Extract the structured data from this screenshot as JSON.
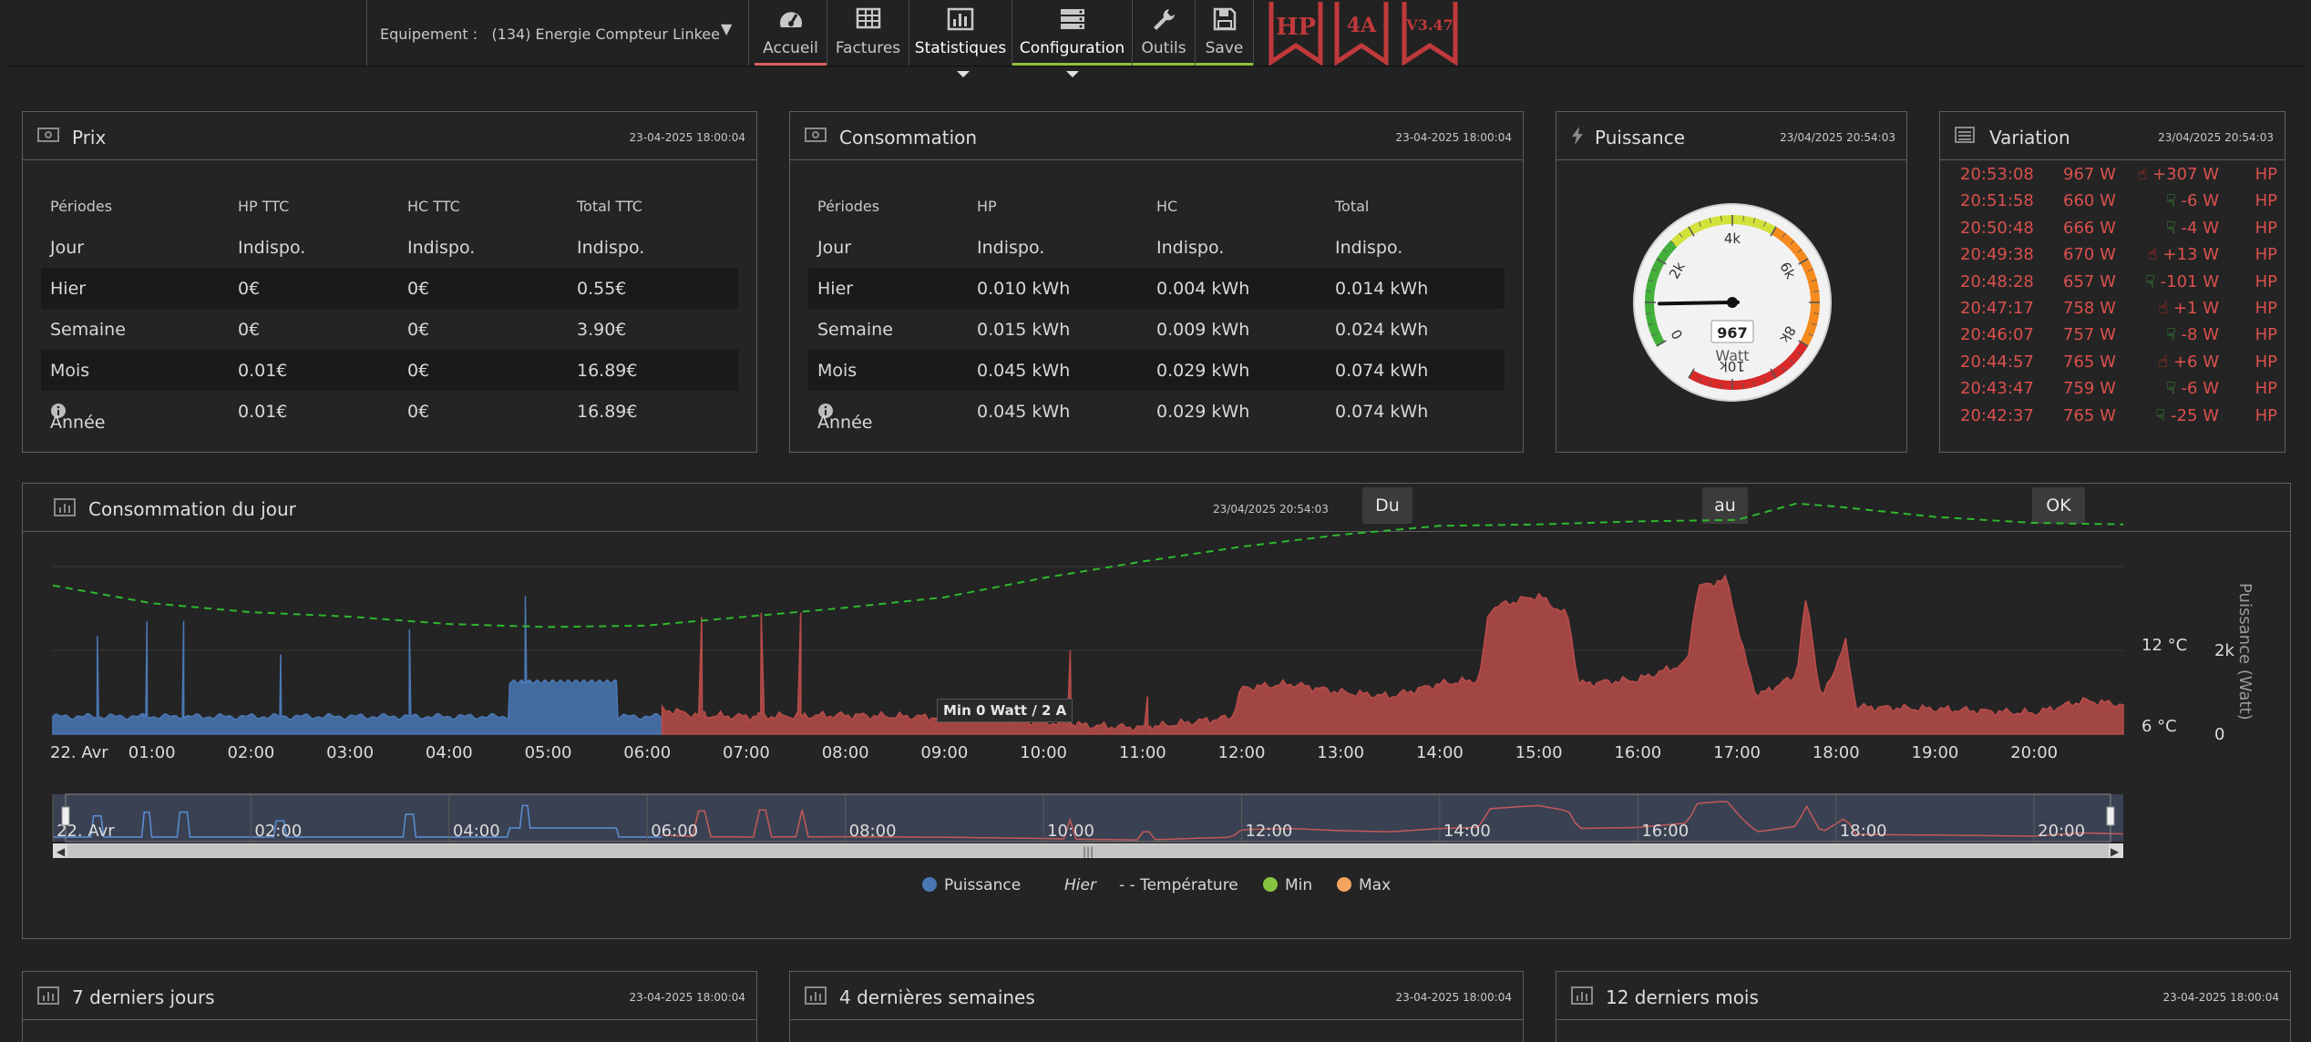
{
  "nav": {
    "equipment_label": "Equipement :",
    "equipment_value": "(134) Energie Compteur Linkee",
    "buttons": [
      {
        "label": "Accueil",
        "icon": "dashboard-icon",
        "underline": "#e06060"
      },
      {
        "label": "Factures",
        "icon": "table-icon",
        "underline": ""
      },
      {
        "label": "Statistiques",
        "icon": "bar-chart-icon",
        "underline": ""
      },
      {
        "label": "Configuration",
        "icon": "server-icon",
        "underline": "#8fc13e"
      },
      {
        "label": "Outils",
        "icon": "wrench-icon",
        "underline": "#8fc13e"
      },
      {
        "label": "Save",
        "icon": "save-icon",
        "underline": "#8fc13e"
      }
    ],
    "badges": [
      "HP",
      "4A",
      "V3.47"
    ],
    "badge_color": "#c0393b"
  },
  "prix": {
    "title": "Prix",
    "date": "23-04-2025 18:00:04",
    "headers": [
      "Périodes",
      "HP TTC",
      "HC TTC",
      "Total TTC"
    ],
    "rows": [
      [
        "Jour",
        "Indispo.",
        "Indispo.",
        "Indispo."
      ],
      [
        "Hier",
        "0€",
        "0€",
        "0.55€"
      ],
      [
        "Semaine",
        "0€",
        "0€",
        "3.90€"
      ],
      [
        "Mois",
        "0.01€",
        "0€",
        "16.89€"
      ],
      [
        "Année",
        "0.01€",
        "0€",
        "16.89€"
      ]
    ]
  },
  "consommation": {
    "title": "Consommation",
    "date": "23-04-2025 18:00:04",
    "headers": [
      "Périodes",
      "HP",
      "HC",
      "Total"
    ],
    "rows": [
      [
        "Jour",
        "Indispo.",
        "Indispo.",
        "Indispo."
      ],
      [
        "Hier",
        "0.010 kWh",
        "0.004 kWh",
        "0.014 kWh"
      ],
      [
        "Semaine",
        "0.015 kWh",
        "0.009 kWh",
        "0.024 kWh"
      ],
      [
        "Mois",
        "0.045 kWh",
        "0.029 kWh",
        "0.074 kWh"
      ],
      [
        "Année",
        "0.045 kWh",
        "0.029 kWh",
        "0.074 kWh"
      ]
    ]
  },
  "puissance": {
    "title": "Puissance",
    "date": "23/04/2025 20:54:03",
    "value": "967",
    "unit": "Watt",
    "gauge_value": 967,
    "gauge_max": 11000,
    "ticks": [
      "0",
      "2k",
      "4k",
      "6k",
      "8k",
      "10k"
    ]
  },
  "variation": {
    "title": "Variation",
    "date": "23/04/2025 20:54:03",
    "rows": [
      {
        "time": "20:53:08",
        "watt": "967 W",
        "delta": "+307 W",
        "tarif": "HP",
        "up": true
      },
      {
        "time": "20:51:58",
        "watt": "660 W",
        "delta": "-6 W",
        "tarif": "HP",
        "up": false
      },
      {
        "time": "20:50:48",
        "watt": "666 W",
        "delta": "-4 W",
        "tarif": "HP",
        "up": false
      },
      {
        "time": "20:49:38",
        "watt": "670 W",
        "delta": "+13 W",
        "tarif": "HP",
        "up": true
      },
      {
        "time": "20:48:28",
        "watt": "657 W",
        "delta": "-101 W",
        "tarif": "HP",
        "up": false
      },
      {
        "time": "20:47:17",
        "watt": "758 W",
        "delta": "+1 W",
        "tarif": "HP",
        "up": true
      },
      {
        "time": "20:46:07",
        "watt": "757 W",
        "delta": "-8 W",
        "tarif": "HP",
        "up": false
      },
      {
        "time": "20:44:57",
        "watt": "765 W",
        "delta": "+6 W",
        "tarif": "HP",
        "up": true
      },
      {
        "time": "20:43:47",
        "watt": "759 W",
        "delta": "-6 W",
        "tarif": "HP",
        "up": false
      },
      {
        "time": "20:42:37",
        "watt": "765 W",
        "delta": "-25 W",
        "tarif": "HP",
        "up": false
      }
    ]
  },
  "daily": {
    "title": "Consommation du jour",
    "date": "23/04/2025 20:54:03",
    "du_label": "Du",
    "au_label": "au",
    "ok_label": "OK",
    "tooltip": "Min 0 Watt / 2 A",
    "legend": {
      "puissance": "Puissance",
      "hier": "Hier",
      "temperature": "- - Température",
      "min": "Min",
      "max": "Max"
    },
    "colors": {
      "hc": "#4a78b5",
      "hp": "#b84c4a",
      "temp": "#2eb82e",
      "min": "#86c440",
      "max": "#f4a460"
    }
  },
  "bottom_panels": [
    {
      "title": "7 derniers jours",
      "date": "23-04-2025 18:00:04"
    },
    {
      "title": "4 dernières semaines",
      "date": "23-04-2025 18:00:04"
    },
    {
      "title": "12 derniers mois",
      "date": "23-04-2025 18:00:04"
    }
  ],
  "chart_data": {
    "type": "area",
    "title": "Consommation du jour",
    "x_ticks": [
      "22. Avr",
      "01:00",
      "02:00",
      "03:00",
      "04:00",
      "05:00",
      "06:00",
      "07:00",
      "08:00",
      "09:00",
      "10:00",
      "11:00",
      "12:00",
      "13:00",
      "14:00",
      "15:00",
      "16:00",
      "17:00",
      "18:00",
      "19:00",
      "20:00"
    ],
    "navigator_ticks": [
      "22. Avr",
      "02:00",
      "04:00",
      "06:00",
      "08:00",
      "10:00",
      "12:00",
      "14:00",
      "16:00",
      "18:00",
      "20:00"
    ],
    "ylabel": "Puissance (Watt)",
    "y_ticks": [
      "0",
      "2k"
    ],
    "y_temp_ticks": [
      "6 °C",
      "12 °C"
    ],
    "ylim": [
      0,
      4000
    ],
    "xlim": [
      0,
      20.9
    ],
    "series": [
      {
        "name": "Puissance",
        "tarif": "HC",
        "x_range": [
          0,
          6.15
        ],
        "baseline": 420,
        "spikes": [
          [
            0.45,
            2350
          ],
          [
            0.95,
            2700
          ],
          [
            1.32,
            2700
          ],
          [
            2.3,
            1900
          ],
          [
            3.6,
            2500
          ],
          [
            4.77,
            3300
          ]
        ],
        "plateau": [
          4.6,
          5.7,
          1250
        ]
      },
      {
        "name": "Puissance",
        "tarif": "HP",
        "x_range": [
          6.15,
          20.9
        ],
        "baseline": 420,
        "points": [
          [
            6.15,
            600
          ],
          [
            6.5,
            450
          ],
          [
            7.0,
            420
          ],
          [
            8.0,
            450
          ],
          [
            9.0,
            400
          ],
          [
            9.9,
            300
          ],
          [
            10.5,
            200
          ],
          [
            11.0,
            150
          ],
          [
            11.9,
            400
          ],
          [
            12.0,
            1100
          ],
          [
            12.5,
            1200
          ],
          [
            13.0,
            1000
          ],
          [
            13.5,
            900
          ],
          [
            14.0,
            1200
          ],
          [
            14.4,
            1300
          ],
          [
            14.5,
            3000
          ],
          [
            14.8,
            3200
          ],
          [
            15.0,
            3300
          ],
          [
            15.3,
            2800
          ],
          [
            15.4,
            1200
          ],
          [
            16.0,
            1300
          ],
          [
            16.5,
            1700
          ],
          [
            16.6,
            3500
          ],
          [
            16.9,
            3700
          ],
          [
            17.05,
            2100
          ],
          [
            17.2,
            900
          ],
          [
            17.6,
            1400
          ],
          [
            17.7,
            3300
          ],
          [
            17.85,
            800
          ],
          [
            18.1,
            2200
          ],
          [
            18.2,
            650
          ],
          [
            19.0,
            600
          ],
          [
            20.0,
            500
          ],
          [
            20.5,
            800
          ],
          [
            20.9,
            700
          ]
        ],
        "spikes": [
          [
            6.55,
            2800
          ],
          [
            7.15,
            2900
          ],
          [
            7.55,
            2900
          ],
          [
            10.27,
            2000
          ],
          [
            11.05,
            900
          ]
        ]
      },
      {
        "name": "Température",
        "points": [
          [
            0,
            16.0
          ],
          [
            1,
            14.8
          ],
          [
            2,
            14.2
          ],
          [
            3,
            13.9
          ],
          [
            4,
            13.4
          ],
          [
            5,
            13.2
          ],
          [
            6,
            13.3
          ],
          [
            7,
            13.9
          ],
          [
            8,
            14.5
          ],
          [
            9,
            15.2
          ],
          [
            10,
            16.5
          ],
          [
            11,
            17.6
          ],
          [
            12,
            18.6
          ],
          [
            13,
            19.4
          ],
          [
            14,
            20.0
          ],
          [
            15,
            20.1
          ],
          [
            16,
            20.3
          ],
          [
            17,
            20.4
          ],
          [
            17.6,
            21.5
          ],
          [
            18,
            21.3
          ],
          [
            19,
            20.6
          ],
          [
            20,
            20.2
          ],
          [
            20.9,
            20.1
          ]
        ]
      }
    ]
  }
}
